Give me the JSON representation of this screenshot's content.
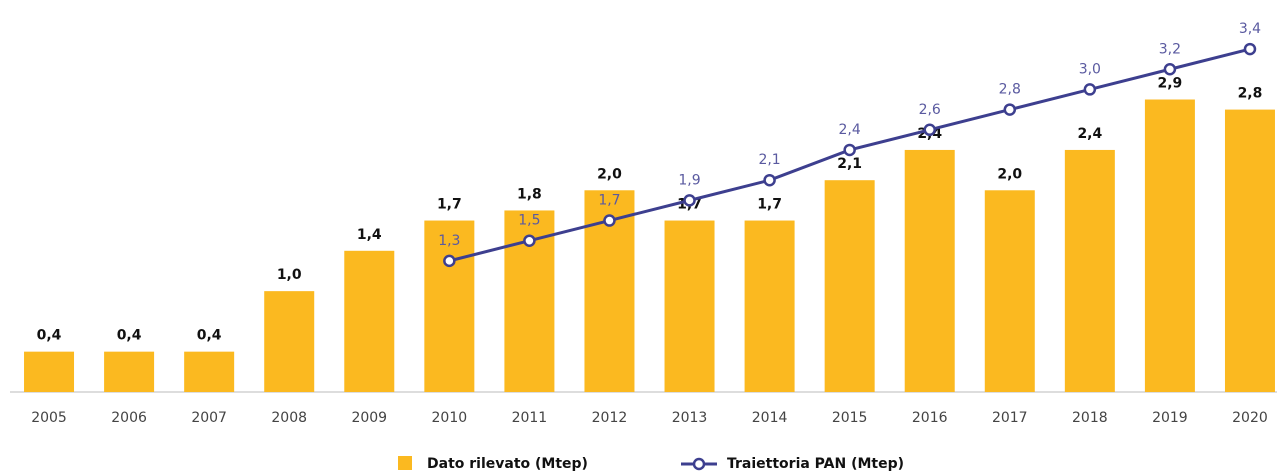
{
  "chart_data": {
    "type": "bar",
    "categories": [
      "2005",
      "2006",
      "2007",
      "2008",
      "2009",
      "2010",
      "2011",
      "2012",
      "2013",
      "2014",
      "2015",
      "2016",
      "2017",
      "2018",
      "2019",
      "2020"
    ],
    "series": [
      {
        "name": "Dato rilevato (Mtep)",
        "type": "bar",
        "color": "#fbb920",
        "values": [
          0.4,
          0.4,
          0.4,
          1.0,
          1.4,
          1.7,
          1.8,
          2.0,
          1.7,
          1.7,
          2.1,
          2.4,
          2.0,
          2.4,
          2.9,
          2.8
        ],
        "value_labels": [
          "0,4",
          "0,4",
          "0,4",
          "1,0",
          "1,4",
          "1,7",
          "1,8",
          "2,0",
          "1,7",
          "1,7",
          "2,1",
          "2,4",
          "2,0",
          "2,4",
          "2,9",
          "2,8"
        ]
      },
      {
        "name": "Traiettoria PAN (Mtep)",
        "type": "line",
        "color": "#3d3f8f",
        "values": [
          null,
          null,
          null,
          null,
          null,
          1.3,
          1.5,
          1.7,
          1.9,
          2.1,
          2.4,
          2.6,
          2.8,
          3.0,
          3.2,
          3.4
        ],
        "value_labels": [
          null,
          null,
          null,
          null,
          null,
          "1,3",
          "1,5",
          "1,7",
          "1,9",
          "2,1",
          "2,4",
          "2,6",
          "2,8",
          "3,0",
          "3,2",
          "3,4"
        ]
      }
    ],
    "ylim": [
      0,
      3.5
    ]
  }
}
